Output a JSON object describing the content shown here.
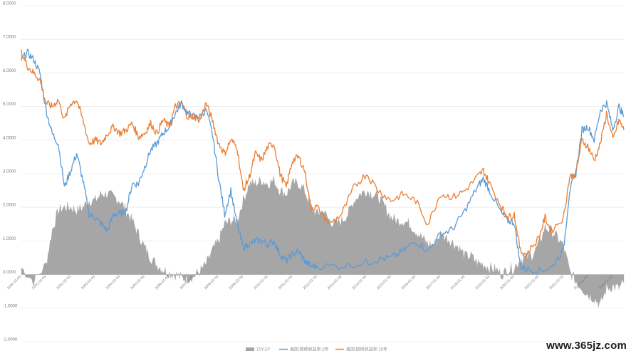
{
  "watermark": "www.365jz.com",
  "colors": {
    "spread": "#a6a6a6",
    "us2y": "#5b9bd5",
    "us10y": "#ed7d31",
    "grid": "#e3e3e3",
    "axis": "#cfcfcf"
  },
  "chart_data": {
    "type": "line",
    "title": "",
    "xlabel": "",
    "ylabel": "",
    "ylim": [
      -2,
      8
    ],
    "yticks": [
      "-2.0000",
      "-1.0000",
      "0.0000",
      "1.0000",
      "2.0000",
      "3.0000",
      "4.0000",
      "5.0000",
      "6.0000",
      "7.0000",
      "8.0000"
    ],
    "xticks": [
      "2000-01-03",
      "2001-01-03",
      "2002-01-03",
      "2003-01-03",
      "2004-01-03",
      "2005-01-03",
      "2006-01-03",
      "2007-01-03",
      "2008-01-03",
      "2009-01-03",
      "2010-01-03",
      "2011-01-03",
      "2012-01-03",
      "2013-01-03",
      "2014-01-03",
      "2015-01-03",
      "2016-01-03",
      "2017-01-03",
      "2018-01-03",
      "2019-01-03",
      "2020-01-03",
      "2021-01-03",
      "2022-01-03",
      "2023-01-03",
      "2024-01-03"
    ],
    "grid": true,
    "legend_position": "bottom",
    "series": [
      {
        "name": "10Y-2Y",
        "kind": "area",
        "color": "#a6a6a6",
        "x": [
          "2000-01-03",
          "2000-07-03",
          "2001-01-03",
          "2001-04-03",
          "2001-07-03",
          "2001-10-03",
          "2002-01-03",
          "2002-04-03",
          "2002-07-03",
          "2002-10-03",
          "2003-01-03",
          "2003-04-03",
          "2003-07-03",
          "2003-10-03",
          "2004-01-03",
          "2004-04-03",
          "2004-07-03",
          "2004-10-03",
          "2005-01-03",
          "2005-04-03",
          "2005-07-03",
          "2005-10-03",
          "2006-01-03",
          "2006-04-03",
          "2006-07-03",
          "2006-10-03",
          "2007-01-03",
          "2007-04-03",
          "2007-07-03",
          "2007-10-03",
          "2008-01-03",
          "2008-04-03",
          "2008-07-03",
          "2008-10-03",
          "2009-01-03",
          "2009-04-03",
          "2009-07-03",
          "2009-10-03",
          "2010-01-03",
          "2010-04-03",
          "2010-07-03",
          "2010-10-03",
          "2011-01-03",
          "2011-04-03",
          "2011-07-03",
          "2011-10-03",
          "2012-01-03",
          "2012-04-03",
          "2012-07-03",
          "2012-10-03",
          "2013-01-03",
          "2013-04-03",
          "2013-07-03",
          "2013-10-03",
          "2014-01-03",
          "2014-04-03",
          "2014-07-03",
          "2014-10-03",
          "2015-01-03",
          "2015-04-03",
          "2015-07-03",
          "2015-10-03",
          "2016-01-03",
          "2016-04-03",
          "2016-07-03",
          "2016-10-03",
          "2017-01-03",
          "2017-04-03",
          "2017-07-03",
          "2017-10-03",
          "2018-01-03",
          "2018-04-03",
          "2018-07-03",
          "2018-10-03",
          "2019-01-03",
          "2019-04-03",
          "2019-07-03",
          "2019-10-03",
          "2020-01-03",
          "2020-04-03",
          "2020-07-03",
          "2020-10-03",
          "2021-01-03",
          "2021-04-03",
          "2021-07-03",
          "2021-10-03",
          "2022-01-03",
          "2022-04-03",
          "2022-07-03",
          "2022-10-03",
          "2023-01-03",
          "2023-04-03",
          "2023-07-03",
          "2023-10-03",
          "2024-01-03",
          "2024-04-03",
          "2024-06-15"
        ],
        "values": [
          0.2,
          -0.2,
          0.3,
          1.3,
          1.9,
          2.0,
          2.0,
          1.9,
          2.0,
          2.2,
          2.2,
          2.4,
          2.4,
          2.3,
          2.2,
          1.9,
          1.6,
          1.2,
          0.8,
          0.5,
          0.3,
          0.15,
          0.05,
          0.0,
          -0.1,
          -0.1,
          -0.05,
          0.1,
          0.3,
          0.7,
          1.0,
          1.5,
          1.6,
          1.6,
          2.2,
          2.7,
          2.7,
          2.8,
          2.7,
          2.8,
          2.5,
          2.4,
          2.7,
          2.7,
          2.5,
          2.0,
          1.8,
          1.9,
          1.6,
          1.5,
          1.6,
          1.8,
          2.2,
          2.4,
          2.5,
          2.4,
          2.3,
          2.0,
          1.7,
          1.6,
          1.6,
          1.5,
          1.3,
          1.1,
          0.9,
          0.9,
          1.2,
          1.1,
          0.95,
          0.8,
          0.55,
          0.55,
          0.35,
          0.3,
          0.2,
          0.15,
          0.0,
          0.15,
          0.2,
          0.45,
          0.5,
          0.6,
          0.9,
          1.4,
          1.3,
          1.1,
          0.85,
          0.1,
          -0.2,
          -0.4,
          -0.6,
          -0.7,
          -0.9,
          -0.4,
          -0.35,
          -0.4,
          -0.25
        ]
      },
      {
        "name": "美国:国债收益率:2年",
        "kind": "line",
        "color": "#5b9bd5",
        "x": [
          "2000-01-03",
          "2000-04-03",
          "2000-07-03",
          "2000-10-03",
          "2001-01-03",
          "2001-04-03",
          "2001-07-03",
          "2001-10-03",
          "2002-01-03",
          "2002-04-03",
          "2002-07-03",
          "2002-10-03",
          "2003-01-03",
          "2003-04-03",
          "2003-07-03",
          "2003-10-03",
          "2004-01-03",
          "2004-04-03",
          "2004-07-03",
          "2004-10-03",
          "2005-01-03",
          "2005-04-03",
          "2005-07-03",
          "2005-10-03",
          "2006-01-03",
          "2006-04-03",
          "2006-07-03",
          "2006-10-03",
          "2007-01-03",
          "2007-04-03",
          "2007-07-03",
          "2007-10-03",
          "2008-01-03",
          "2008-04-03",
          "2008-07-03",
          "2008-10-03",
          "2009-01-03",
          "2009-04-03",
          "2009-07-03",
          "2009-10-03",
          "2010-01-03",
          "2010-04-03",
          "2010-07-03",
          "2010-10-03",
          "2011-01-03",
          "2011-04-03",
          "2011-07-03",
          "2011-10-03",
          "2012-01-03",
          "2013-01-03",
          "2014-01-03",
          "2014-07-03",
          "2015-01-03",
          "2015-07-03",
          "2016-01-03",
          "2016-07-03",
          "2017-01-03",
          "2017-07-03",
          "2018-01-03",
          "2018-07-03",
          "2018-10-03",
          "2019-01-03",
          "2019-07-03",
          "2019-10-03",
          "2020-01-03",
          "2020-04-03",
          "2020-07-03",
          "2021-01-03",
          "2021-07-03",
          "2022-01-03",
          "2022-04-03",
          "2022-07-03",
          "2022-10-03",
          "2023-01-03",
          "2023-04-03",
          "2023-07-03",
          "2023-10-03",
          "2024-01-03",
          "2024-04-03",
          "2024-06-15"
        ],
        "values": [
          6.4,
          6.6,
          6.4,
          6.0,
          4.9,
          4.2,
          3.9,
          2.6,
          3.1,
          3.6,
          2.8,
          1.8,
          1.7,
          1.5,
          1.3,
          1.8,
          1.8,
          1.9,
          2.7,
          2.7,
          3.2,
          3.7,
          3.9,
          4.2,
          4.4,
          4.8,
          5.1,
          4.8,
          4.7,
          4.7,
          4.9,
          4.2,
          2.9,
          1.8,
          2.5,
          1.5,
          0.8,
          0.9,
          1.0,
          1.0,
          0.9,
          1.0,
          0.6,
          0.4,
          0.6,
          0.7,
          0.4,
          0.25,
          0.25,
          0.25,
          0.35,
          0.45,
          0.5,
          0.7,
          1.0,
          0.7,
          1.2,
          1.35,
          1.9,
          2.6,
          2.85,
          2.5,
          1.8,
          1.6,
          1.55,
          0.25,
          0.15,
          0.12,
          0.2,
          0.75,
          2.5,
          3.0,
          4.3,
          4.4,
          4.0,
          4.9,
          5.1,
          4.3,
          5.0,
          4.7
        ]
      },
      {
        "name": "美国:国债收益率:10年",
        "kind": "line",
        "color": "#ed7d31",
        "x": [
          "2000-01-03",
          "2000-04-03",
          "2000-07-03",
          "2000-10-03",
          "2001-01-03",
          "2001-04-03",
          "2001-07-03",
          "2001-10-03",
          "2002-01-03",
          "2002-04-03",
          "2002-07-03",
          "2002-10-03",
          "2003-01-03",
          "2003-04-03",
          "2003-07-03",
          "2003-10-03",
          "2004-01-03",
          "2004-04-03",
          "2004-07-03",
          "2004-10-03",
          "2005-01-03",
          "2005-04-03",
          "2005-07-03",
          "2005-10-03",
          "2006-01-03",
          "2006-04-03",
          "2006-07-03",
          "2006-10-03",
          "2007-01-03",
          "2007-04-03",
          "2007-07-03",
          "2007-10-03",
          "2008-01-03",
          "2008-04-03",
          "2008-07-03",
          "2008-10-03",
          "2009-01-03",
          "2009-04-03",
          "2009-07-03",
          "2009-10-03",
          "2010-01-03",
          "2010-04-03",
          "2010-07-03",
          "2010-10-03",
          "2011-01-03",
          "2011-04-03",
          "2011-07-03",
          "2011-10-03",
          "2012-01-03",
          "2012-07-03",
          "2013-01-03",
          "2013-07-03",
          "2014-01-03",
          "2014-07-03",
          "2015-01-03",
          "2015-07-03",
          "2016-01-03",
          "2016-07-03",
          "2017-01-03",
          "2017-07-03",
          "2018-01-03",
          "2018-07-03",
          "2018-10-03",
          "2019-01-03",
          "2019-07-03",
          "2019-10-03",
          "2020-01-03",
          "2020-04-03",
          "2020-07-03",
          "2021-01-03",
          "2021-04-03",
          "2021-07-03",
          "2022-01-03",
          "2022-04-03",
          "2022-07-03",
          "2022-10-03",
          "2023-01-03",
          "2023-04-03",
          "2023-07-03",
          "2023-10-03",
          "2024-01-03",
          "2024-04-03",
          "2024-06-15"
        ],
        "values": [
          6.6,
          6.2,
          6.0,
          5.8,
          5.1,
          5.0,
          5.2,
          4.6,
          5.1,
          5.2,
          4.6,
          3.9,
          4.0,
          3.9,
          4.2,
          4.4,
          4.2,
          4.3,
          4.5,
          4.1,
          4.2,
          4.5,
          4.2,
          4.6,
          4.4,
          5.0,
          5.1,
          4.7,
          4.7,
          4.6,
          5.1,
          4.6,
          3.9,
          3.6,
          4.0,
          3.8,
          2.5,
          2.9,
          3.6,
          3.4,
          3.8,
          3.9,
          3.0,
          2.6,
          3.4,
          3.5,
          3.1,
          2.0,
          2.0,
          1.5,
          1.8,
          2.6,
          3.0,
          2.5,
          2.2,
          2.4,
          2.2,
          1.5,
          2.4,
          2.3,
          2.5,
          2.9,
          3.1,
          2.7,
          2.0,
          1.7,
          1.8,
          0.7,
          0.6,
          1.1,
          1.7,
          1.3,
          1.7,
          2.9,
          3.0,
          4.0,
          3.8,
          3.4,
          3.9,
          4.8,
          4.0,
          4.6,
          4.3
        ]
      }
    ]
  }
}
